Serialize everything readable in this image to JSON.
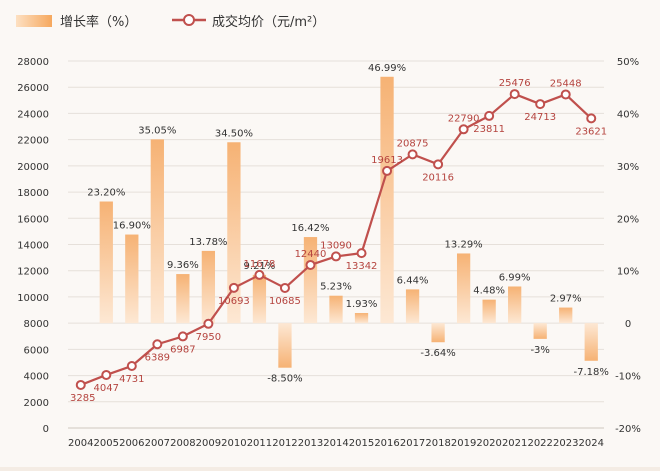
{
  "chart_data": {
    "type": "bar+line",
    "legend": {
      "bar_label": "增长率（%）",
      "line_label": "成交均价（元/m²）",
      "placement": "top-left"
    },
    "categories": [
      "2004",
      "2005",
      "2006",
      "2007",
      "2008",
      "2009",
      "2010",
      "2011",
      "2012",
      "2013",
      "2014",
      "2015",
      "2016",
      "2017",
      "2018",
      "2019",
      "2020",
      "2021",
      "2022",
      "2023",
      "2024"
    ],
    "series": [
      {
        "name": "增长率（%）",
        "type": "bar",
        "axis": "right",
        "values": [
          null,
          23.2,
          16.9,
          35.05,
          9.36,
          13.78,
          34.5,
          9.21,
          -8.5,
          16.42,
          5.23,
          1.93,
          46.99,
          6.44,
          -3.64,
          13.29,
          4.48,
          6.99,
          -3,
          2.97,
          -7.18
        ],
        "labels": [
          "",
          "23.20%",
          "16.90%",
          "35.05%",
          "9.36%",
          "13.78%",
          "34.50%",
          "9.21%",
          "-8.50%",
          "16.42%",
          "5.23%",
          "1.93%",
          "46.99%",
          "6.44%",
          "-3.64%",
          "13.29%",
          "4.48%",
          "6.99%",
          "-3%",
          "2.97%",
          "-7.18%"
        ]
      },
      {
        "name": "成交均价（元/m²）",
        "type": "line",
        "axis": "left",
        "values": [
          3285,
          4047,
          4731,
          6389,
          6987,
          7950,
          10693,
          11678,
          10685,
          12440,
          13090,
          13342,
          19613,
          20875,
          20116,
          22790,
          23811,
          25476,
          24713,
          25448,
          23621
        ],
        "labels": [
          "3285",
          "4047",
          "4731",
          "6389",
          "6987",
          "7950",
          "10693",
          "11678",
          "10685",
          "12440",
          "13090",
          "13342",
          "19613",
          "20875",
          "20116",
          "22790",
          "23811",
          "25476",
          "24713",
          "25448",
          "23621"
        ]
      }
    ],
    "y_left": {
      "ylim": [
        0,
        28000
      ],
      "ticks": [
        0,
        2000,
        4000,
        6000,
        8000,
        10000,
        12000,
        14000,
        16000,
        18000,
        20000,
        22000,
        24000,
        26000,
        28000
      ],
      "tick_labels": [
        "0",
        "2000",
        "4000",
        "6000",
        "8000",
        "10000",
        "12000",
        "14000",
        "16000",
        "18000",
        "20000",
        "22000",
        "24000",
        "26000",
        "28000"
      ]
    },
    "y_right": {
      "ylim": [
        -20,
        50
      ],
      "ticks": [
        -20,
        -10,
        0,
        10,
        20,
        30,
        40,
        50
      ],
      "tick_labels": [
        "-20%",
        "-10%",
        "0",
        "10%",
        "20%",
        "30%",
        "40%",
        "50%"
      ]
    },
    "grid": true,
    "colors": {
      "bar_top": "#f6b274",
      "bar_bottom": "#fde8d4",
      "line": "#c0504d",
      "bar_label": "#333333",
      "line_label": "#b5443f",
      "axis_text": "#333333",
      "grid": "#e6e0da"
    }
  }
}
